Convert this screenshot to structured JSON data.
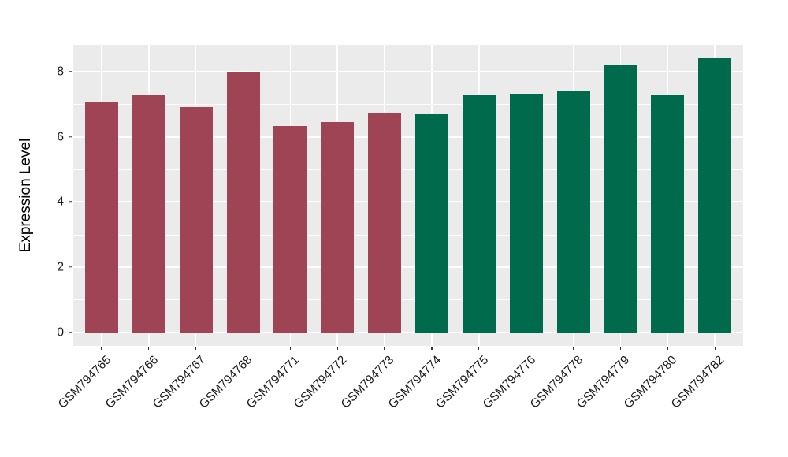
{
  "chart_data": {
    "type": "bar",
    "title": "",
    "xlabel": "",
    "ylabel": "Expression Level",
    "categories": [
      "GSM794765",
      "GSM794766",
      "GSM794767",
      "GSM794768",
      "GSM794771",
      "GSM794772",
      "GSM794773",
      "GSM794774",
      "GSM794775",
      "GSM794776",
      "GSM794778",
      "GSM794779",
      "GSM794780",
      "GSM794782"
    ],
    "values": [
      7.05,
      7.27,
      6.92,
      7.98,
      6.32,
      6.45,
      6.72,
      6.68,
      7.3,
      7.32,
      7.4,
      8.22,
      7.28,
      8.4
    ],
    "bar_colors": [
      "#9E4454",
      "#9E4454",
      "#9E4454",
      "#9E4454",
      "#9E4454",
      "#9E4454",
      "#9E4454",
      "#006B4C",
      "#006B4C",
      "#006B4C",
      "#006B4C",
      "#006B4C",
      "#006B4C",
      "#006B4C"
    ],
    "yticks": [
      0,
      2,
      4,
      6,
      8
    ],
    "minor_yticks": [
      1,
      3,
      5,
      7
    ],
    "ylim": [
      -0.42,
      8.82
    ],
    "grid": true,
    "legend_position": "none",
    "style_colors": {
      "plot_background": "#EBEBEB",
      "gridline": "#FFFFFF",
      "group1_bar": "#9E4454",
      "group2_bar": "#006B4C",
      "tick_text": "#1A1A1A",
      "axis_title_text": "#000000",
      "tick_mark": "#333333"
    }
  }
}
